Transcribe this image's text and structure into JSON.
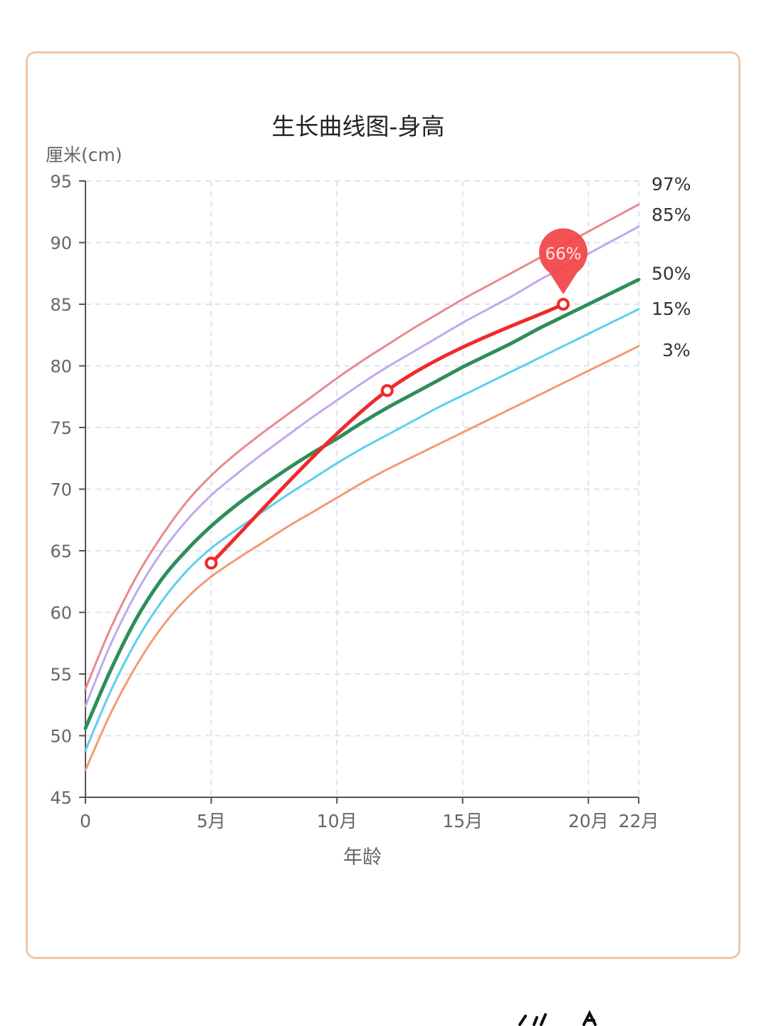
{
  "chart_data": {
    "type": "line",
    "title": "生长曲线图-身高",
    "ylabel": "厘米(cm)",
    "xlabel": "年龄",
    "ylim": [
      45,
      95
    ],
    "xlim": [
      0,
      22
    ],
    "grid": true,
    "yticks": [
      {
        "value": 45,
        "label": "45"
      },
      {
        "value": 50,
        "label": "50"
      },
      {
        "value": 55,
        "label": "55"
      },
      {
        "value": 60,
        "label": "60"
      },
      {
        "value": 65,
        "label": "65"
      },
      {
        "value": 70,
        "label": "70"
      },
      {
        "value": 75,
        "label": "75"
      },
      {
        "value": 80,
        "label": "80"
      },
      {
        "value": 85,
        "label": "85"
      },
      {
        "value": 90,
        "label": "90"
      },
      {
        "value": 95,
        "label": "95"
      }
    ],
    "xticks": [
      {
        "value": 0,
        "label": "0"
      },
      {
        "value": 5,
        "label": "5月"
      },
      {
        "value": 10,
        "label": "10月"
      },
      {
        "value": 15,
        "label": "15月"
      },
      {
        "value": 20,
        "label": "20月"
      },
      {
        "value": 22,
        "label": "22月"
      }
    ],
    "x": [
      0,
      1,
      2,
      3,
      4,
      5,
      6,
      7,
      8,
      9,
      10,
      11,
      12,
      13,
      14,
      15,
      16,
      17,
      18,
      19,
      20,
      21,
      22
    ],
    "series": [
      {
        "name": "97%",
        "color": "#e88a90",
        "width": 3,
        "values": [
          53.8,
          58.7,
          62.8,
          66.1,
          68.9,
          71.1,
          72.9,
          74.5,
          76.0,
          77.5,
          79.0,
          80.4,
          81.7,
          83.0,
          84.2,
          85.4,
          86.5,
          87.6,
          88.7,
          89.8,
          90.9,
          92.0,
          93.1
        ]
      },
      {
        "name": "85%",
        "color": "#c3a8ec",
        "width": 3,
        "values": [
          52.4,
          57.4,
          61.5,
          64.8,
          67.4,
          69.5,
          71.2,
          72.8,
          74.3,
          75.8,
          77.2,
          78.6,
          79.9,
          81.1,
          82.3,
          83.5,
          84.6,
          85.7,
          86.9,
          88.0,
          89.1,
          90.2,
          91.3
        ]
      },
      {
        "name": "50%",
        "color": "#2e8e5a",
        "width": 5,
        "values": [
          50.6,
          55.3,
          59.4,
          62.6,
          65.0,
          67.0,
          68.7,
          70.2,
          71.6,
          72.9,
          74.1,
          75.4,
          76.6,
          77.7,
          78.8,
          79.9,
          80.9,
          81.9,
          83.0,
          84.0,
          85.0,
          86.0,
          87.0
        ]
      },
      {
        "name": "15%",
        "color": "#5ccfef",
        "width": 3,
        "values": [
          48.8,
          53.6,
          57.6,
          60.8,
          63.3,
          65.2,
          66.7,
          68.1,
          69.5,
          70.8,
          72.1,
          73.3,
          74.4,
          75.5,
          76.6,
          77.6,
          78.6,
          79.6,
          80.6,
          81.6,
          82.6,
          83.6,
          84.6
        ]
      },
      {
        "name": "3%",
        "color": "#f49a72",
        "width": 3,
        "values": [
          47.2,
          51.8,
          55.6,
          58.7,
          61.1,
          62.9,
          64.3,
          65.6,
          66.9,
          68.1,
          69.3,
          70.5,
          71.6,
          72.6,
          73.6,
          74.6,
          75.6,
          76.6,
          77.6,
          78.6,
          79.6,
          80.6,
          81.6
        ]
      }
    ],
    "measurements": {
      "color": "#f02a2a",
      "points": [
        {
          "x": 5,
          "y": 64
        },
        {
          "x": 12,
          "y": 78
        },
        {
          "x": 19,
          "y": 85
        }
      ]
    },
    "marker": {
      "label": "66%",
      "x": 19,
      "y": 85,
      "color": "#f24346"
    }
  }
}
